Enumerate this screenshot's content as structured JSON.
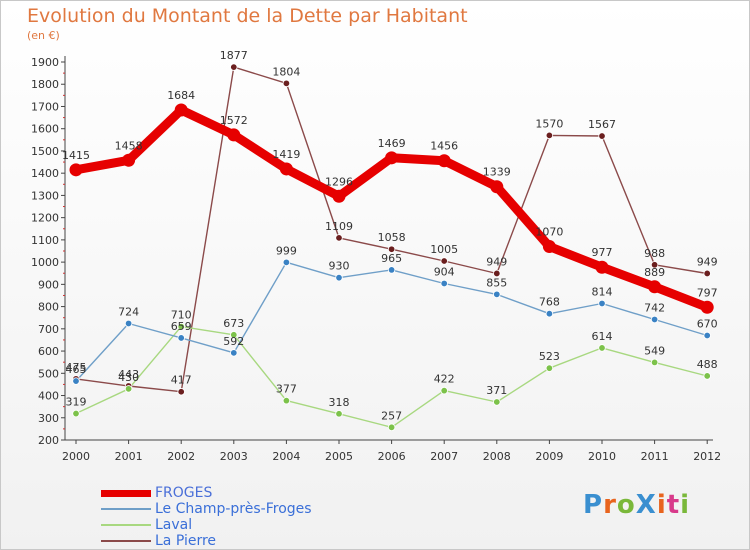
{
  "title": "Evolution du Montant de la Dette par Habitant",
  "subtitle": "(en €)",
  "logo": {
    "text": "ProXiti",
    "colors": [
      "#3a8fd0",
      "#e8641e",
      "#7ab83a",
      "#3a8fd0",
      "#e8641e",
      "#d83a8a",
      "#7ab83a"
    ]
  },
  "chart_data": {
    "type": "line",
    "title": "Evolution du Montant de la Dette par Habitant",
    "ylabel": "(en €)",
    "xlabel": "",
    "categories": [
      "2000",
      "2001",
      "2002",
      "2003",
      "2004",
      "2005",
      "2006",
      "2007",
      "2008",
      "2009",
      "2010",
      "2011",
      "2012"
    ],
    "ylim": [
      200,
      1900
    ],
    "yticks": [
      200,
      300,
      400,
      500,
      600,
      700,
      800,
      900,
      1000,
      1100,
      1200,
      1300,
      1400,
      1500,
      1600,
      1700,
      1800,
      1900
    ],
    "grid": false,
    "legend_position": "bottom-left",
    "series": [
      {
        "name": "FROGES",
        "color": "#e60000",
        "values": [
          1415,
          1458,
          1684,
          1572,
          1419,
          1296,
          1469,
          1456,
          1339,
          1070,
          977,
          889,
          797
        ]
      },
      {
        "name": "Le Champ-près-Froges",
        "color": "#6f9fc8",
        "marker": "#3a82c4",
        "values": [
          465,
          724,
          659,
          592,
          999,
          930,
          965,
          904,
          855,
          768,
          814,
          742,
          670
        ]
      },
      {
        "name": "Laval",
        "color": "#a8d880",
        "marker": "#7cc24a",
        "values": [
          319,
          430,
          710,
          673,
          377,
          318,
          257,
          422,
          371,
          523,
          614,
          549,
          488
        ]
      },
      {
        "name": "La Pierre",
        "color": "#8b4a4a",
        "marker": "#6b1f1f",
        "values": [
          475,
          443,
          417,
          1877,
          1804,
          1109,
          1058,
          1005,
          949,
          1570,
          1567,
          988,
          949
        ]
      }
    ]
  }
}
